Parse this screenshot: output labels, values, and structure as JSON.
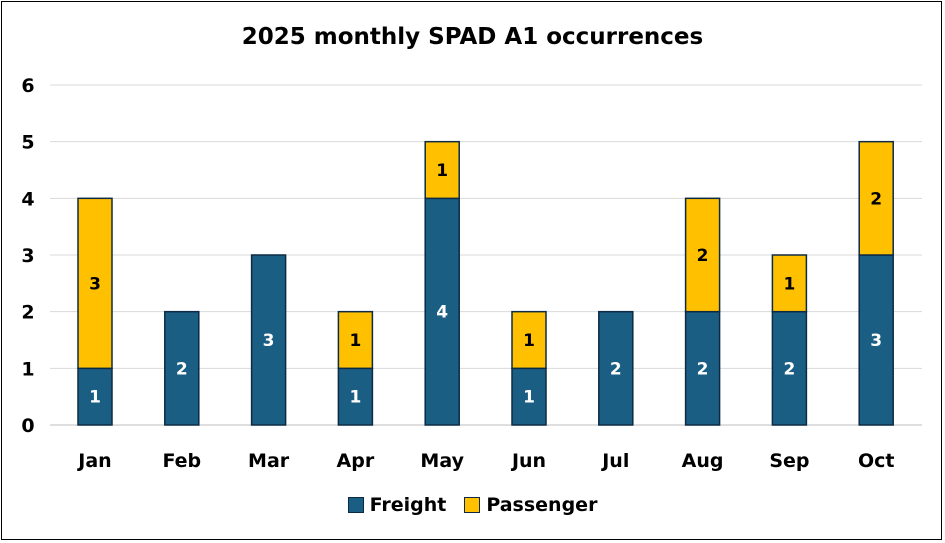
{
  "chart_data": {
    "type": "bar",
    "stacked": true,
    "title": "2025 monthly SPAD A1 occurrences",
    "xlabel": "",
    "ylabel": "",
    "categories": [
      "Jan",
      "Feb",
      "Mar",
      "Apr",
      "May",
      "Jun",
      "Jul",
      "Aug",
      "Sep",
      "Oct"
    ],
    "series": [
      {
        "name": "Freight",
        "color": "#1b5e83",
        "values": [
          1,
          2,
          3,
          1,
          4,
          1,
          2,
          2,
          2,
          3
        ]
      },
      {
        "name": "Passenger",
        "color": "#ffc000",
        "values": [
          3,
          0,
          0,
          1,
          1,
          1,
          0,
          2,
          1,
          2
        ]
      }
    ],
    "ylim": [
      0,
      6
    ],
    "yticks": [
      0,
      1,
      2,
      3,
      4,
      5,
      6
    ],
    "grid": true,
    "data_labels": true,
    "legend": "bottom"
  }
}
